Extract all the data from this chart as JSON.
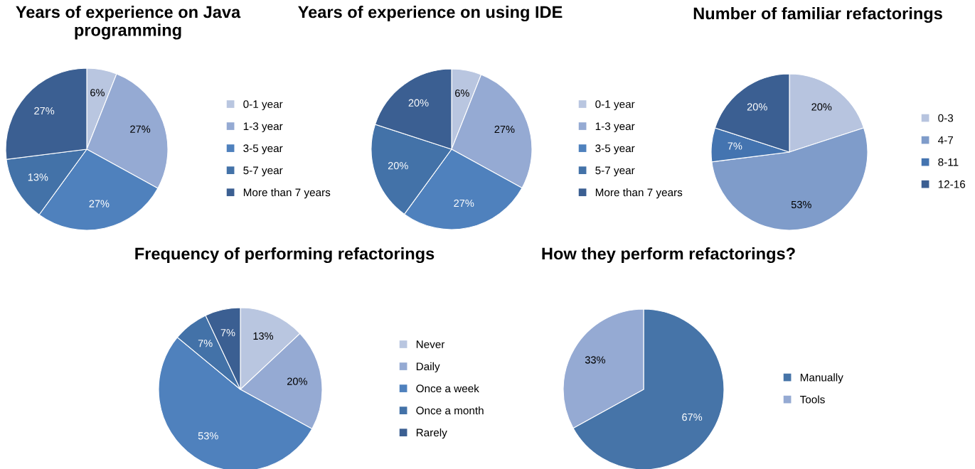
{
  "chart_data": [
    {
      "type": "pie",
      "title": "Years of experience on Java programming",
      "categories": [
        "0-1 year",
        "1-3 year",
        "3-5 year",
        "5-7 year",
        "More than 7 years"
      ],
      "values": [
        6,
        27,
        27,
        13,
        27
      ],
      "colors": [
        "#b9c6e0",
        "#95aad3",
        "#4f81bd",
        "#4372a8",
        "#3b5f92"
      ],
      "value_labels": [
        "6%",
        "27%",
        "27%",
        "13%",
        "27%"
      ],
      "legend": "right"
    },
    {
      "type": "pie",
      "title": "Years of experience on using IDE",
      "categories": [
        "0-1 year",
        "1-3 year",
        "3-5 year",
        "5-7 year",
        "More than 7 years"
      ],
      "values": [
        6,
        27,
        27,
        20,
        20
      ],
      "colors": [
        "#b9c6e0",
        "#95aad3",
        "#4f81bd",
        "#4372a8",
        "#3b5f92"
      ],
      "value_labels": [
        "6%",
        "27%",
        "27%",
        "20%",
        "20%"
      ],
      "legend": "right"
    },
    {
      "type": "pie",
      "title": "Number of familiar refactorings",
      "categories": [
        "0-3",
        "4-7",
        "8-11",
        "12-16"
      ],
      "values": [
        20,
        53,
        7,
        20
      ],
      "colors": [
        "#b7c4df",
        "#7f9cca",
        "#4474b0",
        "#3b5f92"
      ],
      "value_labels": [
        "20%",
        "53%",
        "7%",
        "20%"
      ],
      "legend": "right"
    },
    {
      "type": "pie",
      "title": "Frequency of performing refactorings",
      "categories": [
        "Never",
        "Daily",
        "Once a week",
        "Once a month",
        "Rarely"
      ],
      "values": [
        13,
        20,
        53,
        7,
        7
      ],
      "colors": [
        "#b9c6e0",
        "#95aad3",
        "#4f81bd",
        "#4372a8",
        "#3b5f92"
      ],
      "value_labels": [
        "13%",
        "20%",
        "53%",
        "7%",
        "7%"
      ],
      "legend": "right"
    },
    {
      "type": "pie",
      "title": "How they perform refactorings?",
      "categories": [
        "Manually",
        "Tools"
      ],
      "values": [
        67,
        33
      ],
      "colors": [
        "#4674a8",
        "#95aad3"
      ],
      "value_labels": [
        "67%",
        "33%"
      ],
      "legend": "right"
    }
  ]
}
